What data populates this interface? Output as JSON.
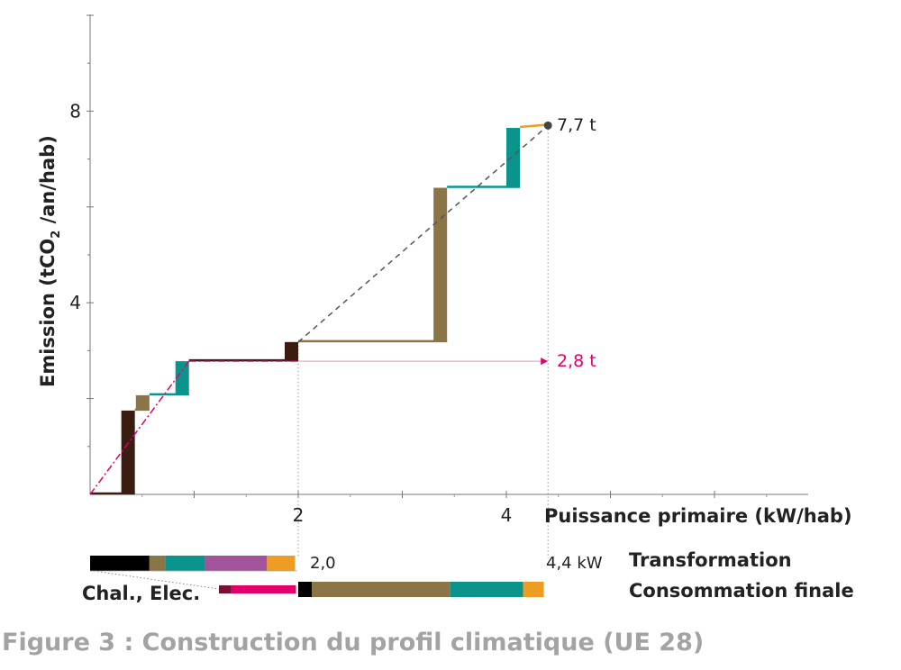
{
  "caption": "Figure 3 : Construction du profil climatique (UE 28)",
  "chart_data": {
    "type": "step-cascade",
    "xlabel": "Puissance primaire (kW/hab)",
    "ylabel": "Emission  (tCO2 /an/hab)",
    "ylabel_parts": [
      "Emission  (tCO",
      "2",
      " /an/hab)"
    ],
    "x_ticks": [
      {
        "value": 2,
        "label": "2"
      },
      {
        "value": 4,
        "label": "4"
      }
    ],
    "y_ticks": [
      {
        "value": 4,
        "label": "4"
      },
      {
        "value": 8,
        "label": "8"
      }
    ],
    "xlim": [
      0,
      6.9
    ],
    "ylim": [
      0,
      10
    ],
    "colors": {
      "dark_brown": "#3a1d10",
      "olive": "#8a7547",
      "teal": "#0b948c",
      "black": "#000000",
      "purple": "#a1539b",
      "orange": "#ee9d24",
      "magenta": "#e2006b",
      "dark_red": "#7a0f32",
      "dashed": "#555555"
    },
    "cascade": [
      {
        "from": [
          0.0,
          0.0
        ],
        "to": [
          0.43,
          0.0
        ],
        "x_bar": 0.43,
        "y_bar": [
          0.0,
          1.75
        ],
        "color": "dark_brown"
      },
      {
        "from": [
          0.43,
          1.75
        ],
        "to": [
          0.57,
          1.75
        ],
        "x_bar": 0.57,
        "y_bar": [
          1.75,
          2.07
        ],
        "color": "olive"
      },
      {
        "from": [
          0.57,
          2.07
        ],
        "to": [
          0.95,
          2.07
        ],
        "x_bar": 0.95,
        "y_bar": [
          2.07,
          2.78
        ],
        "color": "teal"
      },
      {
        "from": [
          0.95,
          2.78
        ],
        "to": [
          2.0,
          2.78
        ],
        "x_bar": 2.0,
        "y_bar": [
          2.78,
          3.18
        ],
        "color": "dark_brown"
      },
      {
        "from": [
          2.0,
          3.18
        ],
        "to": [
          3.43,
          3.18
        ],
        "x_bar": 3.43,
        "y_bar": [
          3.18,
          6.4
        ],
        "color": "olive"
      },
      {
        "from": [
          3.43,
          6.4
        ],
        "to": [
          4.13,
          6.4
        ],
        "x_bar": 4.13,
        "y_bar": [
          6.4,
          7.65
        ],
        "color": "teal"
      },
      {
        "from": [
          4.13,
          7.65
        ],
        "to": [
          4.4,
          7.7
        ],
        "color": "orange"
      }
    ],
    "dashed_line": {
      "from": [
        2.0,
        3.18
      ],
      "to": [
        4.4,
        7.7
      ],
      "color": "dashed"
    },
    "magenta_line": {
      "from": [
        0.0,
        0.0
      ],
      "to": [
        0.95,
        2.78
      ],
      "color": "magenta"
    },
    "magenta_arrow": {
      "from": [
        2.0,
        2.78
      ],
      "to": [
        4.4,
        2.78
      ],
      "color": "magenta"
    },
    "end_point": {
      "x": 4.4,
      "y": 7.7
    },
    "annotations": {
      "total": {
        "label": "7,7 t",
        "x": 4.4,
        "y": 7.7
      },
      "partial": {
        "label": "2,8 t",
        "x": 4.4,
        "y": 2.78
      }
    },
    "guide_lines": [
      2.0,
      4.4
    ],
    "bars": {
      "transformation": {
        "label": "Transformation",
        "end_label": "2,0",
        "segments": [
          {
            "value": 0.57,
            "color": "black"
          },
          {
            "value": 0.15,
            "color": "olive"
          },
          {
            "value": 0.38,
            "color": "teal"
          },
          {
            "value": 0.6,
            "color": "purple"
          },
          {
            "value": 0.27,
            "color": "orange"
          }
        ]
      },
      "consommation": {
        "label": "Consommation finale",
        "end_label": "4,4 kW",
        "left_label": "Chal., Elec.",
        "pre_segments": [
          {
            "value": 0.12,
            "color": "dark_red"
          },
          {
            "value": 0.62,
            "color": "magenta"
          }
        ],
        "segments": [
          {
            "value": 0.13,
            "color": "black"
          },
          {
            "value": 1.33,
            "color": "olive"
          },
          {
            "value": 0.7,
            "color": "teal"
          },
          {
            "value": 0.2,
            "color": "orange"
          }
        ]
      }
    }
  }
}
